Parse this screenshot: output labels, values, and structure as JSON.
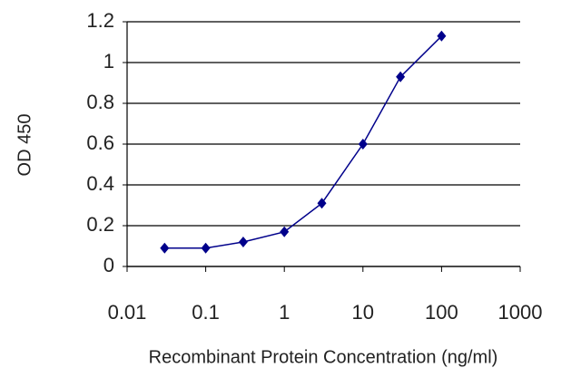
{
  "chart_data": {
    "type": "line",
    "x_label": "Recombinant Protein Concentration (ng/ml)",
    "y_label": "OD 450",
    "xscale": "log",
    "x": [
      0.03,
      0.1,
      0.3,
      1,
      3,
      10,
      30,
      100
    ],
    "series": [
      {
        "color": "#00008b",
        "values": [
          0.09,
          0.09,
          0.12,
          0.17,
          0.31,
          0.6,
          0.93,
          1.13
        ]
      }
    ],
    "xlim": [
      0.01,
      1000
    ],
    "xticks": [
      0.01,
      0.1,
      1,
      10,
      100,
      1000
    ],
    "ylim": [
      0,
      1.2
    ],
    "yticks": [
      0,
      0.2,
      0.4,
      0.6,
      0.8,
      1,
      1.2
    ],
    "grid": true
  }
}
